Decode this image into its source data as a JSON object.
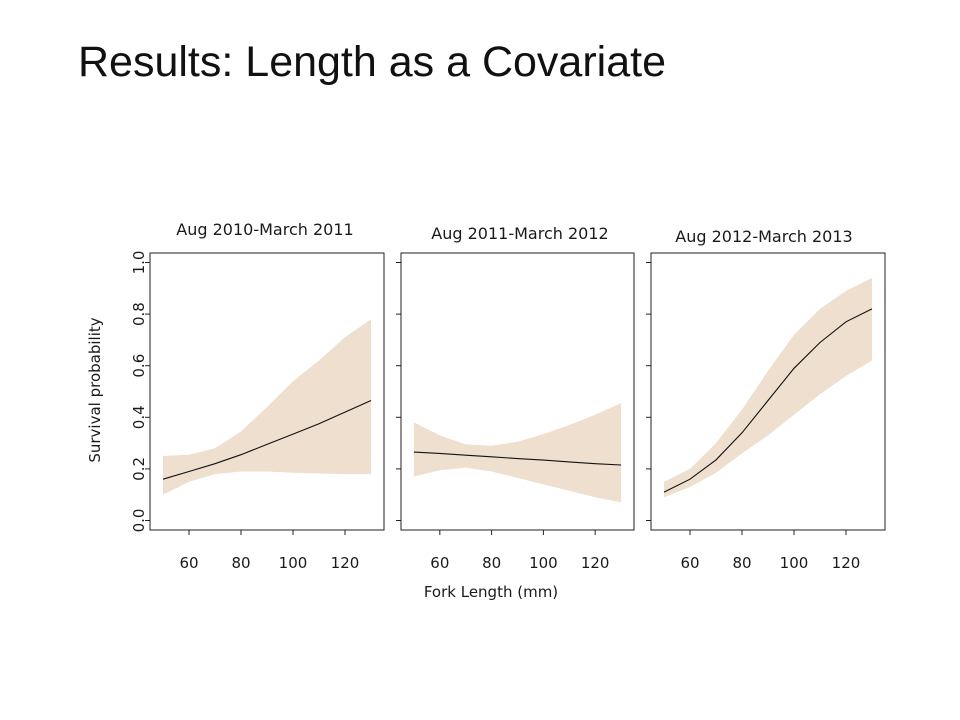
{
  "slide": {
    "title": "Results: Length as a Covariate"
  },
  "chart_data": {
    "type": "line",
    "layout": "three panels, shared y-axis on left panel",
    "ylabel": "Survival probability",
    "xlabel": "Fork Length (mm)",
    "ylim": [
      0.0,
      1.0
    ],
    "xlim": [
      45,
      135
    ],
    "yticks": [
      "0.0",
      "0.2",
      "0.4",
      "0.6",
      "0.8",
      "1.0"
    ],
    "xticks": [
      "60",
      "80",
      "100",
      "120"
    ],
    "band_color": "#eedfcf",
    "line_color": "#111111",
    "panels": [
      {
        "title": "Aug 2010-March 2011",
        "x": [
          50,
          60,
          70,
          80,
          90,
          100,
          110,
          120,
          130
        ],
        "estimate": [
          0.16,
          0.19,
          0.22,
          0.255,
          0.295,
          0.335,
          0.375,
          0.42,
          0.465
        ],
        "lower": [
          0.1,
          0.15,
          0.18,
          0.19,
          0.19,
          0.185,
          0.182,
          0.18,
          0.18
        ],
        "upper": [
          0.25,
          0.255,
          0.28,
          0.345,
          0.44,
          0.54,
          0.62,
          0.71,
          0.78
        ]
      },
      {
        "title": "Aug 2011-March 2012",
        "x": [
          50,
          60,
          70,
          80,
          90,
          100,
          110,
          120,
          130
        ],
        "estimate": [
          0.265,
          0.26,
          0.253,
          0.247,
          0.24,
          0.234,
          0.227,
          0.22,
          0.215
        ],
        "lower": [
          0.17,
          0.195,
          0.205,
          0.19,
          0.165,
          0.14,
          0.115,
          0.09,
          0.07
        ],
        "upper": [
          0.38,
          0.33,
          0.295,
          0.29,
          0.305,
          0.335,
          0.37,
          0.41,
          0.455
        ]
      },
      {
        "title": "Aug 2012-March 2013",
        "x": [
          50,
          60,
          70,
          80,
          90,
          100,
          110,
          120,
          130
        ],
        "estimate": [
          0.11,
          0.16,
          0.235,
          0.34,
          0.465,
          0.59,
          0.69,
          0.77,
          0.82
        ],
        "lower": [
          0.09,
          0.13,
          0.185,
          0.26,
          0.33,
          0.41,
          0.49,
          0.56,
          0.62
        ],
        "upper": [
          0.15,
          0.2,
          0.3,
          0.43,
          0.58,
          0.72,
          0.82,
          0.89,
          0.94
        ]
      }
    ]
  }
}
